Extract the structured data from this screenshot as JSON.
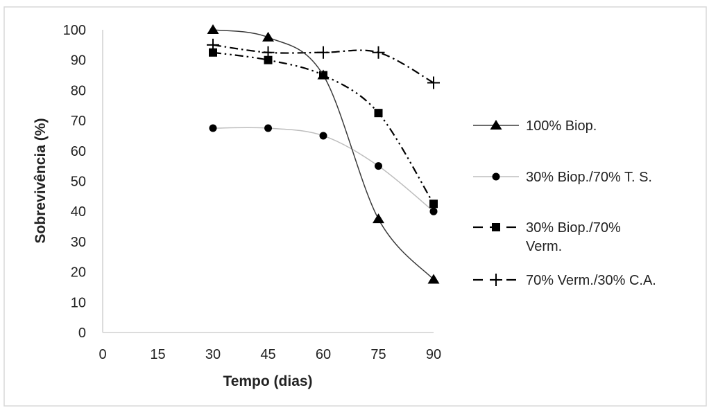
{
  "chart_data": {
    "type": "line",
    "title": "",
    "xlabel": "Tempo (dias)",
    "ylabel": "Sobrevivência (%)",
    "xlim": [
      0,
      90
    ],
    "ylim": [
      0,
      100
    ],
    "x_ticks": [
      0,
      15,
      30,
      45,
      60,
      75,
      90
    ],
    "y_ticks": [
      0,
      10,
      20,
      30,
      40,
      50,
      60,
      70,
      80,
      90,
      100
    ],
    "grid": false,
    "legend_position": "right",
    "x": [
      30,
      45,
      60,
      75,
      90
    ],
    "series": [
      {
        "name": "100% Biop.",
        "marker": "triangle",
        "line": "solid-thin-dark",
        "color": "#3a3a3a",
        "values": [
          100,
          97.5,
          85,
          37.5,
          17.5
        ]
      },
      {
        "name": "30% Biop./70% T. S.",
        "marker": "circle",
        "line": "solid-light",
        "color": "#b8b8b8",
        "values": [
          67.5,
          67.5,
          65,
          55,
          40
        ]
      },
      {
        "name": "30% Biop./70% Verm.",
        "marker": "square",
        "line": "dash-dot-dot",
        "color": "#000000",
        "values": [
          92.5,
          90,
          85,
          72.5,
          42.5
        ]
      },
      {
        "name": "70% Verm./30% C.A.",
        "marker": "plus",
        "line": "dash-dot",
        "color": "#000000",
        "values": [
          95,
          92.5,
          92.5,
          92.5,
          82.5
        ]
      }
    ]
  }
}
